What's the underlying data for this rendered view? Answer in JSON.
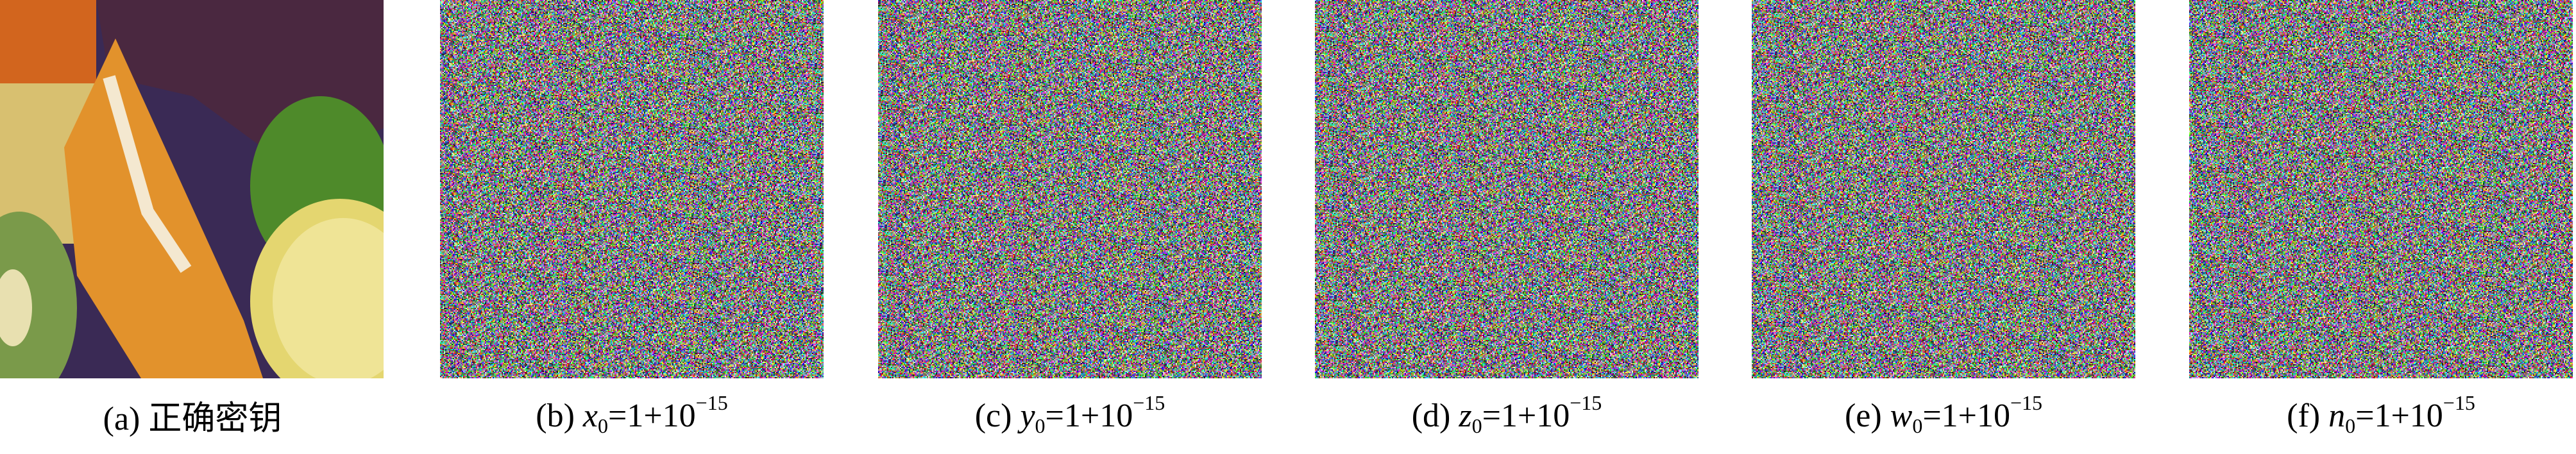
{
  "figure": {
    "panels": [
      {
        "label": "(a)",
        "caption": "正确密钥",
        "image": "original-fruit-photo"
      },
      {
        "label": "(b)",
        "var": "x",
        "sub": "0",
        "rest": "=1+10",
        "exp": "−15",
        "image": "decrypted-noise"
      },
      {
        "label": "(c)",
        "var": "y",
        "sub": "0",
        "rest": "=1+10",
        "exp": "−15",
        "image": "decrypted-noise"
      },
      {
        "label": "(d)",
        "var": "z",
        "sub": "0",
        "rest": "=1+10",
        "exp": "−15",
        "image": "decrypted-noise"
      },
      {
        "label": "(e)",
        "var": "w",
        "sub": "0",
        "rest": "=1+10",
        "exp": "−15",
        "image": "decrypted-noise"
      },
      {
        "label": "(f)",
        "var": "n",
        "sub": "0",
        "rest": "=1+10",
        "exp": "−15",
        "image": "decrypted-noise"
      }
    ]
  }
}
